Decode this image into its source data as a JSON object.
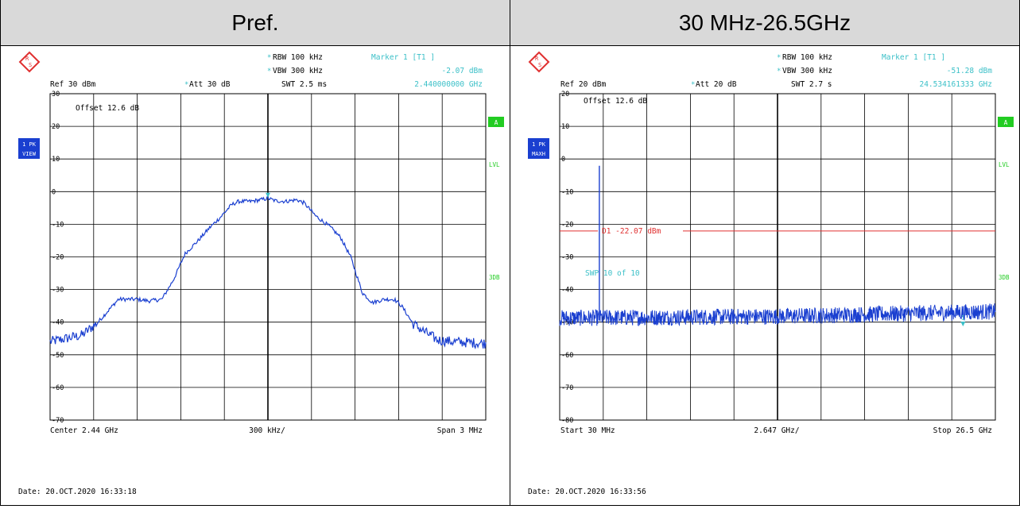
{
  "headers": [
    "Pref.",
    "30 MHz-26.5GHz"
  ],
  "colors": {
    "trace": "#1a3fd0",
    "cyan": "#3cc0c8",
    "grid": "#000000",
    "display_line": "#e03030",
    "badge_green": "#22cc22",
    "badge_blue": "#1a3fd0",
    "header_bg": "#d9d9d9"
  },
  "panels": [
    {
      "logo_icon": "rohde-schwarz-logo",
      "rbw": "RBW 100 kHz",
      "vbw": "VBW 300 kHz",
      "swt": "SWT 2.5 ms",
      "marker_title": "Marker 1 [T1 ]",
      "marker_level": "-2.07 dBm",
      "marker_freq": "2.440000000 GHz",
      "ref": "Ref  30 dBm",
      "att": "Att  30 dB",
      "offset": "Offset  12.6 dB",
      "badge1_top": "1 PK",
      "badge1_bottom": "VIEW",
      "right_badge": "A",
      "lvl": "LVL",
      "three_db": "3DB",
      "foot_left": "Center 2.44 GHz",
      "foot_center": "300 kHz/",
      "foot_right": "Span 3 MHz",
      "date": "Date: 20.OCT.2020  16:33:18"
    },
    {
      "logo_icon": "rohde-schwarz-logo",
      "rbw": "RBW 100 kHz",
      "vbw": "VBW 300 kHz",
      "swt": "SWT 2.7 s",
      "marker_title": "Marker 1 [T1 ]",
      "marker_level": "-51.28 dBm",
      "marker_freq": "24.534161333 GHz",
      "ref": "Ref  20 dBm",
      "att": "Att  20 dB",
      "offset": "Offset  12.6 dB",
      "badge1_top": "1 PK",
      "badge1_bottom": "MAXH",
      "right_badge": "A",
      "lvl": "LVL",
      "three_db": "3DB",
      "d1_label": "D1  -22.07 dBm",
      "swp_label": "SWP    10 of    10",
      "marker_label": "1",
      "foot_left": "Start 30 MHz",
      "foot_center": "2.647 GHz/",
      "foot_right": "Stop 26.5 GHz",
      "date": "Date: 20.OCT.2020  16:33:56"
    }
  ],
  "chart_data": [
    {
      "type": "line",
      "x_unit": "GHz",
      "y_unit": "dBm",
      "xlim": [
        2.4385,
        2.4415
      ],
      "ylim": [
        -70,
        30
      ],
      "y_ticks": [
        30,
        20,
        10,
        0,
        -10,
        -20,
        -30,
        -40,
        -50,
        -60,
        -70
      ],
      "grid": true,
      "trace_shape": [
        [
          2.4385,
          -46
        ],
        [
          2.43872,
          -44
        ],
        [
          2.43883,
          -40
        ],
        [
          2.43893,
          -35
        ],
        [
          2.43897,
          -33
        ],
        [
          2.4391,
          -33
        ],
        [
          2.43918,
          -33.5
        ],
        [
          2.43927,
          -33
        ],
        [
          2.43935,
          -27
        ],
        [
          2.43943,
          -19
        ],
        [
          2.43952,
          -15
        ],
        [
          2.4396,
          -11
        ],
        [
          2.43967,
          -8
        ],
        [
          2.43975,
          -4
        ],
        [
          2.4398,
          -3
        ],
        [
          2.43988,
          -3
        ],
        [
          2.43995,
          -2.5
        ],
        [
          2.44,
          -2.07
        ],
        [
          2.44005,
          -2.8
        ],
        [
          2.44012,
          -3
        ],
        [
          2.4402,
          -2.5
        ],
        [
          2.44025,
          -3.5
        ],
        [
          2.44033,
          -7.5
        ],
        [
          2.44042,
          -10.5
        ],
        [
          2.4405,
          -14
        ],
        [
          2.44057,
          -20
        ],
        [
          2.44065,
          -31
        ],
        [
          2.44072,
          -34
        ],
        [
          2.4408,
          -33
        ],
        [
          2.44087,
          -33
        ],
        [
          2.44092,
          -35
        ],
        [
          2.441,
          -40.5
        ],
        [
          2.44108,
          -43
        ],
        [
          2.44117,
          -45.5
        ],
        [
          2.44128,
          -46
        ],
        [
          2.4415,
          -46.5
        ]
      ],
      "marker": {
        "label": "1",
        "x": 2.44,
        "y": -2.07
      }
    },
    {
      "type": "line",
      "x_unit": "GHz",
      "y_unit": "dBm",
      "xlim": [
        0.03,
        26.5
      ],
      "ylim": [
        -80,
        20
      ],
      "y_ticks": [
        20,
        10,
        0,
        -10,
        -20,
        -30,
        -40,
        -50,
        -60,
        -70,
        -80
      ],
      "grid": true,
      "noise_floor": [
        [
          0.03,
          -49.5
        ],
        [
          13,
          -49
        ],
        [
          26.5,
          -47.5
        ]
      ],
      "spike": {
        "x": 2.44,
        "y": -2.07
      },
      "display_line": -22.07,
      "marker": {
        "label": "1",
        "x": 24.534161333,
        "y": -51.28
      }
    }
  ]
}
